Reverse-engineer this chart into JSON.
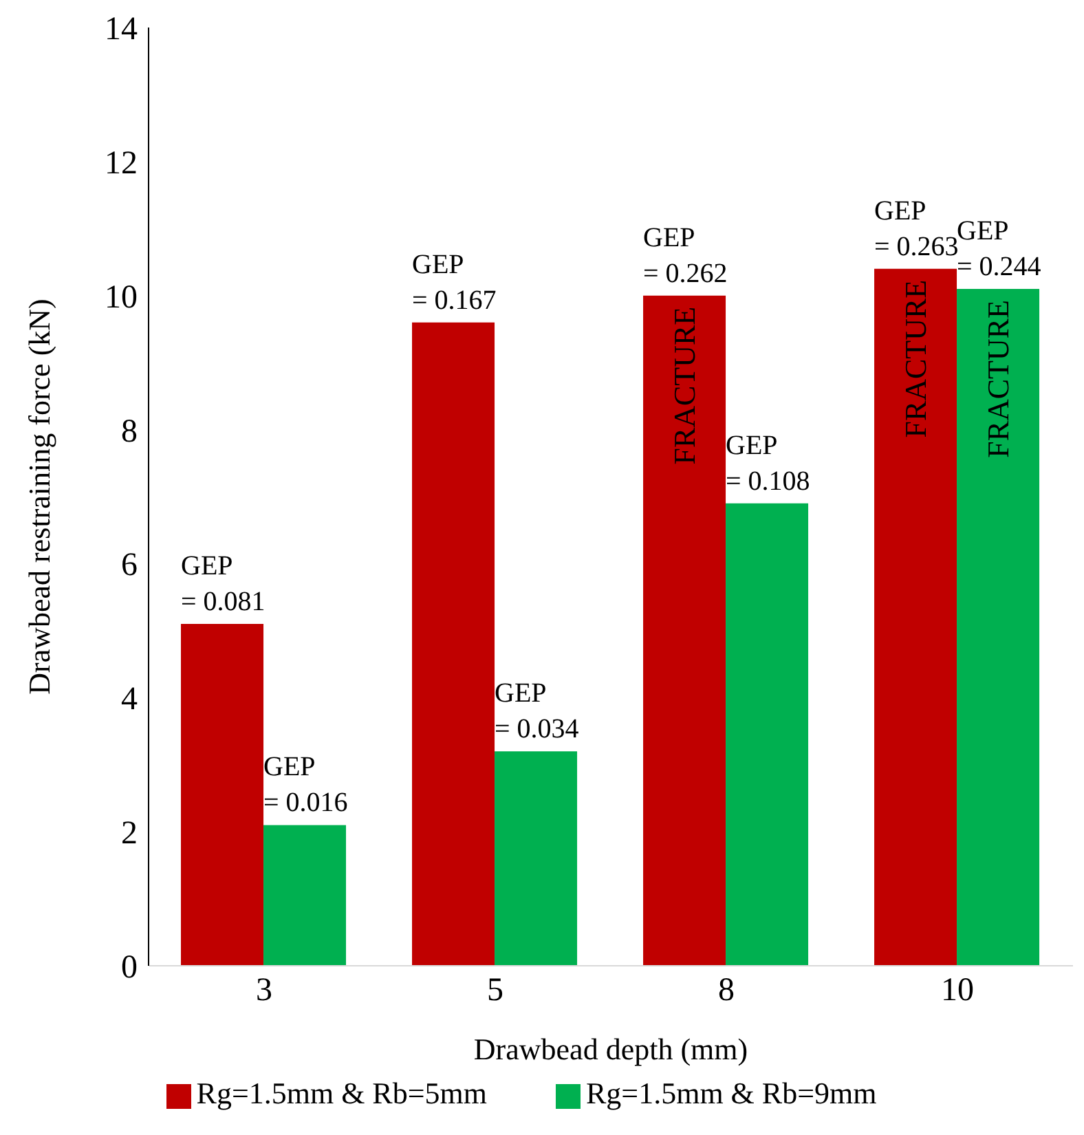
{
  "chart_data": {
    "type": "bar",
    "xlabel": "Drawbead depth (mm)",
    "ylabel": "Drawbead restraining force (kN)",
    "categories": [
      "3",
      "5",
      "8",
      "10"
    ],
    "series": [
      {
        "name": "Rg=1.5mm & Rb=5mm",
        "color": "#c00000",
        "values": [
          5.1,
          9.6,
          10.0,
          10.4
        ]
      },
      {
        "name": "Rg=1.5mm & Rb=9mm",
        "color": "#00b050",
        "values": [
          2.1,
          3.2,
          6.9,
          10.1
        ]
      }
    ],
    "annotations": [
      {
        "text": "GEP\n= 0.081",
        "x": "3",
        "y": 5.1
      },
      {
        "text": "GEP\n= 0.016",
        "x": "3",
        "y": 2.1
      },
      {
        "text": "GEP\n= 0.167",
        "x": "5",
        "y": 9.6
      },
      {
        "text": "GEP\n= 0.034",
        "x": "5",
        "y": 3.2
      },
      {
        "text": "GEP\n= 0.262",
        "x": "8",
        "y": 10.0
      },
      {
        "text": "GEP\n= 0.108",
        "x": "8",
        "y": 6.9
      },
      {
        "text": "GEP\n= 0.263",
        "x": "10",
        "y": 10.4
      },
      {
        "text": "GEP\n= 0.244",
        "x": "10",
        "y": 10.1
      },
      {
        "text": "FRACTURE",
        "x": "8",
        "y": 10.0
      },
      {
        "text": "FRACTURE",
        "x": "10",
        "y": 10.4
      },
      {
        "text": "FRACTURE",
        "x": "10",
        "y": 10.1
      }
    ],
    "ylim": [
      0,
      14
    ],
    "yticks": [
      0,
      2,
      4,
      6,
      8,
      10,
      12,
      14
    ],
    "grid": false,
    "legend": "bottom"
  }
}
